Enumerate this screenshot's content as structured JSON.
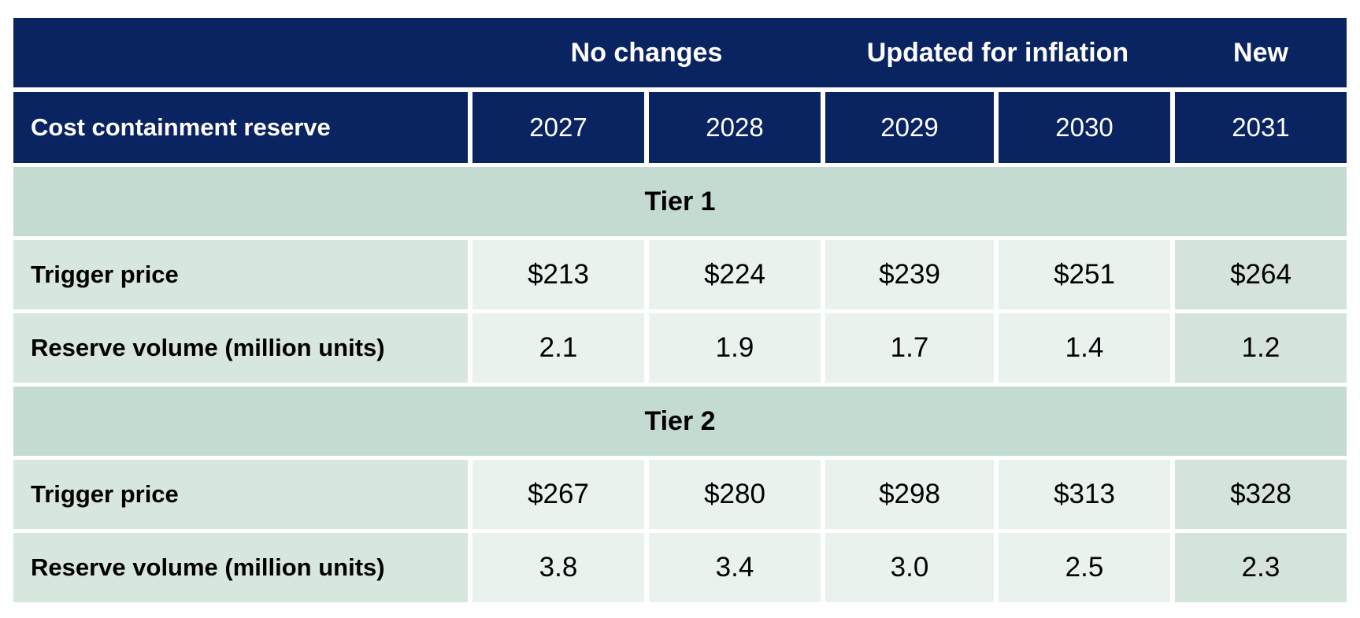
{
  "chart_data": {
    "type": "table",
    "corner_label": "Cost containment reserve",
    "column_groups": [
      {
        "label": "No changes",
        "years": [
          "2027",
          "2028"
        ]
      },
      {
        "label": "Updated for inflation",
        "years": [
          "2029",
          "2030"
        ]
      },
      {
        "label": "New",
        "years": [
          "2031"
        ]
      }
    ],
    "years": [
      "2027",
      "2028",
      "2029",
      "2030",
      "2031"
    ],
    "sections": [
      {
        "tier": "Tier 1",
        "rows": [
          {
            "label": "Trigger price",
            "values": [
              "$213",
              "$224",
              "$239",
              "$251",
              "$264"
            ]
          },
          {
            "label": "Reserve volume (million units)",
            "values": [
              "2.1",
              "1.9",
              "1.7",
              "1.4",
              "1.2"
            ]
          }
        ]
      },
      {
        "tier": "Tier 2",
        "rows": [
          {
            "label": "Trigger price",
            "values": [
              "$267",
              "$280",
              "$298",
              "$313",
              "$328"
            ]
          },
          {
            "label": "Reserve volume (million units)",
            "values": [
              "3.8",
              "3.4",
              "3.0",
              "2.5",
              "2.3"
            ]
          }
        ]
      }
    ],
    "highlighted_column": "2031",
    "layout": {
      "grid": "off",
      "legend": "none"
    },
    "colors": {
      "header_navy": "#0a2361",
      "tier_band": "#c4dbd2",
      "label_cell": "#d8e7dd",
      "value_cell": "#e9f2ed",
      "highlight_cell": "#d4e4da",
      "header_text": "#ffffff",
      "body_text": "#000000",
      "gap": "#ffffff"
    }
  }
}
